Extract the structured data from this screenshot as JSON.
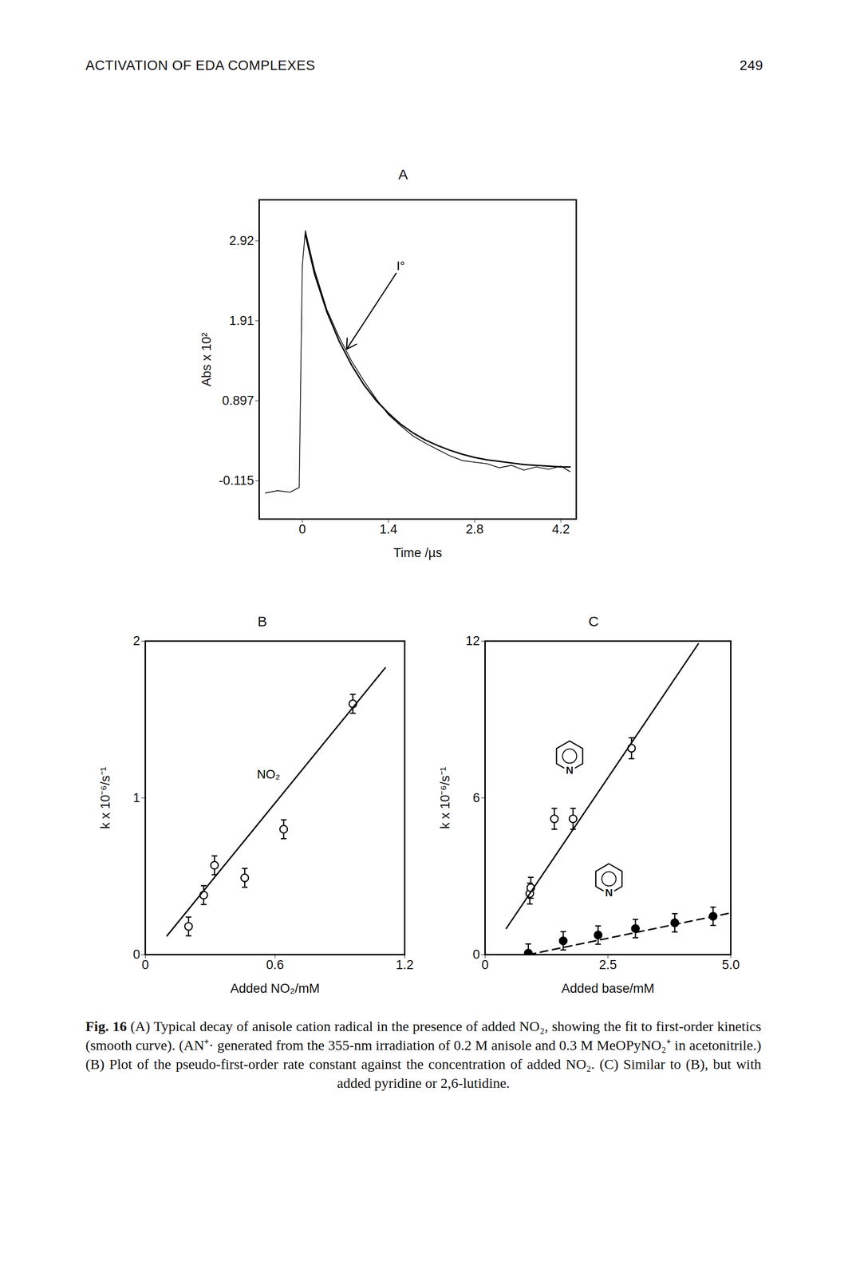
{
  "header": {
    "title": "ACTIVATION OF EDA COMPLEXES",
    "page_number": "249"
  },
  "chart_data": [
    {
      "type": "line",
      "title": "A",
      "x_label": "Time /µs",
      "y_label": "Abs x 10²",
      "xlim": [
        -0.7,
        4.45
      ],
      "ylim": [
        -0.6,
        3.44
      ],
      "xticks": [
        0,
        1.4,
        2.8,
        4.2
      ],
      "yticks": [
        -0.115,
        0.897,
        1.91,
        2.92
      ],
      "series": [
        {
          "type": "line",
          "color": "#000000",
          "line_style": "thin",
          "x": [
            -0.6,
            -0.4,
            -0.2,
            -0.05,
            0.0,
            0.05,
            0.2,
            0.4,
            0.6,
            0.8,
            1.0,
            1.2,
            1.4,
            1.6,
            1.8,
            2.0,
            2.2,
            2.4,
            2.6,
            2.8,
            3.0,
            3.2,
            3.4,
            3.6,
            3.8,
            4.0,
            4.2,
            4.35
          ],
          "values": [
            -0.27,
            -0.24,
            -0.26,
            -0.2,
            2.6,
            3.05,
            2.55,
            2.05,
            1.7,
            1.4,
            1.15,
            0.92,
            0.72,
            0.58,
            0.45,
            0.36,
            0.28,
            0.2,
            0.14,
            0.12,
            0.1,
            0.05,
            0.08,
            0.02,
            0.06,
            0.03,
            0.07,
            0.0
          ]
        },
        {
          "type": "line",
          "color": "#000000",
          "line_style": "solid",
          "x": [
            0.05,
            0.2,
            0.4,
            0.6,
            0.8,
            1.0,
            1.2,
            1.4,
            1.6,
            1.8,
            2.0,
            2.2,
            2.4,
            2.6,
            2.8,
            3.0,
            3.2,
            3.4,
            3.6,
            3.8,
            4.0,
            4.2,
            4.35
          ],
          "values": [
            3.0,
            2.5,
            2.02,
            1.65,
            1.35,
            1.1,
            0.9,
            0.74,
            0.6,
            0.49,
            0.4,
            0.33,
            0.27,
            0.22,
            0.18,
            0.15,
            0.13,
            0.11,
            0.09,
            0.08,
            0.07,
            0.06,
            0.06
          ]
        }
      ],
      "annotations": [
        {
          "text": "I°",
          "x": 1.6,
          "y": 2.6,
          "arrow_x": 0.72,
          "arrow_y": 1.55
        }
      ]
    },
    {
      "type": "scatter",
      "title": "B",
      "x_label": "Added NO₂/mM",
      "y_label": "k x 10⁻⁶/s⁻¹",
      "xlim": [
        0,
        1.2
      ],
      "ylim": [
        0,
        2
      ],
      "xticks": [
        0,
        0.6,
        1.2
      ],
      "yticks": [
        0,
        1,
        2
      ],
      "series": [
        {
          "type": "scatter",
          "color": "#000000",
          "marker": "circle-open",
          "x": [
            0.2,
            0.27,
            0.32,
            0.46,
            0.64,
            0.96
          ],
          "values": [
            0.18,
            0.38,
            0.57,
            0.49,
            0.8,
            1.6
          ],
          "errors": [
            0.06,
            0.06,
            0.06,
            0.06,
            0.06,
            0.06
          ]
        },
        {
          "type": "line",
          "color": "#000000",
          "line_style": "solid",
          "x": [
            0.1,
            1.11
          ],
          "values": [
            0.12,
            1.83
          ]
        }
      ],
      "annotations": [
        {
          "text": "NO₂",
          "x": 0.57,
          "y": 1.15
        }
      ]
    },
    {
      "type": "scatter",
      "title": "C",
      "x_label": "Added base/mM",
      "y_label": "k x 10⁻⁶/s⁻¹",
      "xlim": [
        0,
        5
      ],
      "ylim": [
        0,
        12
      ],
      "xticks": [
        0,
        2.5,
        {
          "value": 5,
          "label": "5.0"
        }
      ],
      "yticks": [
        0,
        6,
        12
      ],
      "series": [
        {
          "type": "scatter",
          "color": "#000000",
          "marker": "circle-open",
          "x": [
            0.91,
            0.93,
            1.41,
            1.79,
            2.98
          ],
          "values": [
            2.34,
            2.56,
            5.2,
            5.2,
            7.9
          ],
          "errors": [
            0.4,
            0.4,
            0.4,
            0.4,
            0.4
          ]
        },
        {
          "type": "line",
          "color": "#000000",
          "line_style": "solid",
          "x": [
            0.43,
            4.34
          ],
          "values": [
            1.0,
            11.9
          ]
        },
        {
          "type": "scatter",
          "color": "#000000",
          "marker": "circle",
          "x": [
            0.88,
            1.59,
            2.3,
            3.06,
            3.86,
            4.64
          ],
          "values": [
            0.06,
            0.53,
            0.75,
            1.0,
            1.22,
            1.47
          ],
          "errors": [
            0.35,
            0.35,
            0.35,
            0.35,
            0.35,
            0.35
          ]
        },
        {
          "type": "line",
          "color": "#000000",
          "line_style": "dashed",
          "x": [
            0.88,
            5.0
          ],
          "values": [
            0.0,
            1.6
          ]
        }
      ],
      "structures": [
        {
          "label": "N",
          "x": 1.72,
          "y": 7.6
        },
        {
          "label": "N",
          "x": 2.52,
          "y": 2.9
        }
      ]
    }
  ],
  "caption": {
    "label": "Fig. 16",
    "text": "(A) Typical decay of anisole cation radical in the presence of added NO₂, showing the fit to first-order kinetics (smooth curve). (AN⁺· generated from the 355-nm irradiation of 0.2 M anisole and 0.3 M MeOPyNO₂⁺ in acetonitrile.) (B) Plot of the pseudo-first-order rate constant against the concentration of added NO₂. (C) Similar to (B), but with added pyridine or 2,6-lutidine."
  }
}
